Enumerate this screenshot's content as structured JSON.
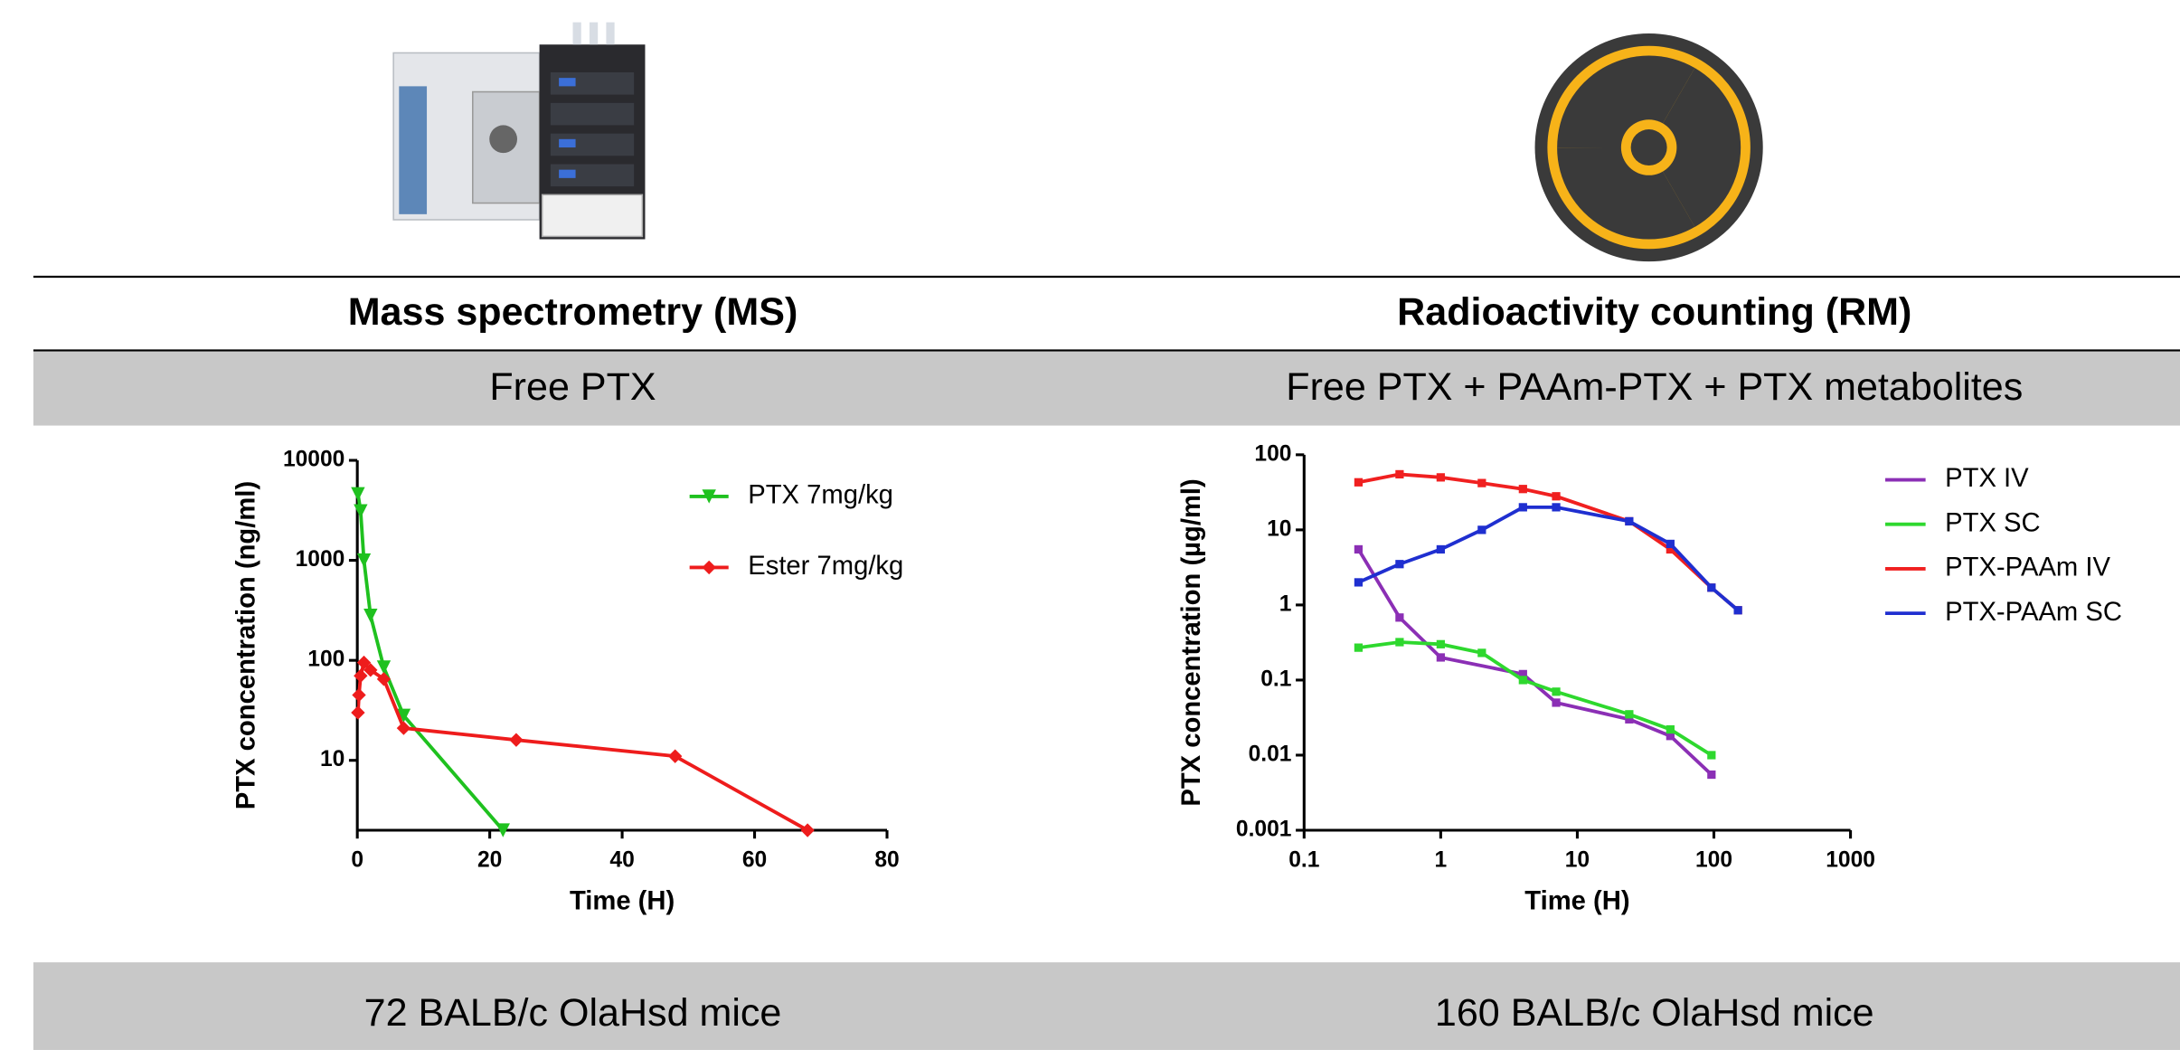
{
  "columns": [
    {
      "method": "Mass spectrometry (MS)",
      "analyte": "Free PTX",
      "mice": "72 BALB/c OlaHsd mice"
    },
    {
      "method": "Radioactivity counting (RM)",
      "analyte": "Free PTX + PAAm-PTX + PTX metabolites",
      "mice": "160 BALB/c OlaHsd mice"
    }
  ],
  "chart_data": [
    {
      "type": "line",
      "x_label": "Time (H)",
      "y_label": "PTX concentration (ng/ml)",
      "xlim": [
        0,
        80
      ],
      "xticks": [
        0,
        20,
        40,
        60,
        80
      ],
      "ylim": [
        2,
        10000
      ],
      "yticks": [
        10,
        100,
        1000,
        10000
      ],
      "yscale": "log",
      "legend": "upper right",
      "series": [
        {
          "name": "PTX 7mg/kg",
          "color": "#1fc11f",
          "marker": "triangle-down",
          "x": [
            0.1,
            0.5,
            1,
            2,
            4,
            7,
            22
          ],
          "values": [
            4600,
            3100,
            1000,
            280,
            85,
            28,
            2
          ]
        },
        {
          "name": "Ester 7mg/kg",
          "color": "#ee1c1c",
          "marker": "diamond",
          "x": [
            0.1,
            0.25,
            0.5,
            1,
            2,
            4,
            7,
            24,
            48,
            68
          ],
          "values": [
            30,
            45,
            70,
            95,
            80,
            65,
            21,
            16,
            11,
            2
          ]
        }
      ]
    },
    {
      "type": "line",
      "x_label": "Time (H)",
      "y_label": "PTX concentration (µg/ml)",
      "xlim": [
        0.1,
        1000
      ],
      "xticks": [
        0.1,
        1,
        10,
        100,
        1000
      ],
      "xscale": "log",
      "ylim": [
        0.001,
        100
      ],
      "yticks": [
        0.001,
        0.01,
        0.1,
        1,
        10,
        100
      ],
      "yscale": "log",
      "legend": "outside right",
      "series": [
        {
          "name": "PTX IV",
          "color": "#8b2fb5",
          "marker": "square",
          "x": [
            0.25,
            0.5,
            1,
            4,
            7,
            24,
            48,
            96
          ],
          "values": [
            5.5,
            0.68,
            0.2,
            0.12,
            0.05,
            0.03,
            0.018,
            0.0055
          ]
        },
        {
          "name": "PTX SC",
          "color": "#2ed82e",
          "marker": "square",
          "x": [
            0.25,
            0.5,
            1,
            2,
            4,
            7,
            24,
            48,
            96
          ],
          "values": [
            0.27,
            0.32,
            0.3,
            0.23,
            0.1,
            0.07,
            0.035,
            0.022,
            0.01
          ]
        },
        {
          "name": "PTX-PAAm IV",
          "color": "#f02020",
          "marker": "square",
          "x": [
            0.25,
            0.5,
            1,
            2,
            4,
            7,
            24,
            48,
            96,
            150
          ],
          "values": [
            43,
            55,
            50,
            42,
            35,
            28,
            13,
            5.5,
            1.7,
            0.85
          ]
        },
        {
          "name": "PTX-PAAm SC",
          "color": "#1f2fd0",
          "marker": "square",
          "x": [
            0.25,
            0.5,
            1,
            2,
            4,
            7,
            24,
            48,
            96,
            150
          ],
          "values": [
            2,
            3.5,
            5.5,
            10,
            20,
            20,
            13,
            6.5,
            1.7,
            0.85
          ]
        }
      ]
    }
  ]
}
